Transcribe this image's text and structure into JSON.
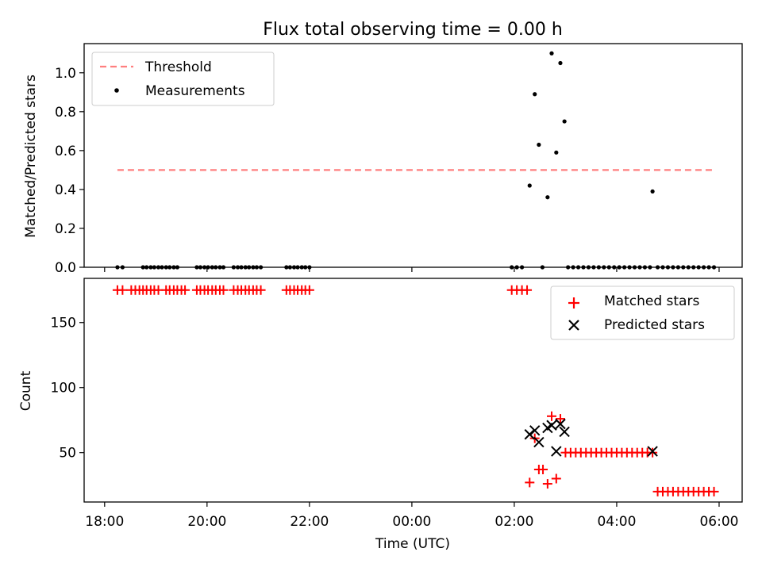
{
  "chart_data": [
    {
      "type": "scatter",
      "title": "Flux total observing time = 0.00 h",
      "ylabel": "Matched/Predicted stars",
      "xlabel": "",
      "x_unit": "hours since 18:00 UTC on the time axis",
      "ylim": [
        0,
        1.15
      ],
      "yticks": [
        "0.0",
        "0.2",
        "0.4",
        "0.6",
        "0.8",
        "1.0"
      ],
      "legend": {
        "placement": "top-left",
        "entries": [
          "Threshold",
          "Measurements"
        ]
      },
      "threshold": {
        "name": "Threshold",
        "value": 0.5,
        "x_range": [
          0.25,
          11.9
        ],
        "color": "#ff7f7f",
        "style": "dashed"
      },
      "series": [
        {
          "name": "Measurements",
          "color": "#000000",
          "points": [
            [
              0.25,
              0
            ],
            [
              0.35,
              0
            ],
            [
              0.75,
              0
            ],
            [
              0.82,
              0
            ],
            [
              0.9,
              0
            ],
            [
              0.97,
              0
            ],
            [
              1.05,
              0
            ],
            [
              1.12,
              0
            ],
            [
              1.2,
              0
            ],
            [
              1.27,
              0
            ],
            [
              1.35,
              0
            ],
            [
              1.42,
              0
            ],
            [
              1.8,
              0
            ],
            [
              1.87,
              0
            ],
            [
              1.95,
              0
            ],
            [
              2.02,
              0
            ],
            [
              2.1,
              0
            ],
            [
              2.17,
              0
            ],
            [
              2.25,
              0
            ],
            [
              2.32,
              0
            ],
            [
              2.52,
              0
            ],
            [
              2.6,
              0
            ],
            [
              2.67,
              0
            ],
            [
              2.75,
              0
            ],
            [
              2.82,
              0
            ],
            [
              2.9,
              0
            ],
            [
              2.97,
              0
            ],
            [
              3.05,
              0
            ],
            [
              3.55,
              0
            ],
            [
              3.62,
              0
            ],
            [
              3.7,
              0
            ],
            [
              3.77,
              0
            ],
            [
              3.85,
              0
            ],
            [
              3.92,
              0
            ],
            [
              4.0,
              0
            ],
            [
              7.95,
              0
            ],
            [
              8.05,
              0
            ],
            [
              8.15,
              0
            ],
            [
              8.55,
              0
            ],
            [
              8.3,
              0.42
            ],
            [
              8.4,
              0.89
            ],
            [
              8.48,
              0.63
            ],
            [
              8.65,
              0.36
            ],
            [
              8.73,
              1.1
            ],
            [
              8.82,
              0.59
            ],
            [
              8.9,
              1.05
            ],
            [
              8.98,
              0.75
            ],
            [
              10.7,
              0.39
            ],
            [
              9.05,
              0
            ],
            [
              9.15,
              0
            ],
            [
              9.25,
              0
            ],
            [
              9.35,
              0
            ],
            [
              9.45,
              0
            ],
            [
              9.55,
              0
            ],
            [
              9.65,
              0
            ],
            [
              9.75,
              0
            ],
            [
              9.85,
              0
            ],
            [
              9.95,
              0
            ],
            [
              10.05,
              0
            ],
            [
              10.15,
              0
            ],
            [
              10.25,
              0
            ],
            [
              10.35,
              0
            ],
            [
              10.45,
              0
            ],
            [
              10.55,
              0
            ],
            [
              10.65,
              0
            ],
            [
              10.8,
              0
            ],
            [
              10.9,
              0
            ],
            [
              11.0,
              0
            ],
            [
              11.1,
              0
            ],
            [
              11.2,
              0
            ],
            [
              11.3,
              0
            ],
            [
              11.4,
              0
            ],
            [
              11.5,
              0
            ],
            [
              11.6,
              0
            ],
            [
              11.7,
              0
            ],
            [
              11.8,
              0
            ],
            [
              11.9,
              0
            ]
          ]
        }
      ]
    },
    {
      "type": "scatter",
      "title": "",
      "ylabel": "Count",
      "xlabel": "Time (UTC)",
      "x_unit": "hours since 18:00 UTC",
      "xlim": [
        -0.4,
        12.45
      ],
      "xticks": [
        {
          "value": 0,
          "label": "18:00"
        },
        {
          "value": 2,
          "label": "20:00"
        },
        {
          "value": 4,
          "label": "22:00"
        },
        {
          "value": 6,
          "label": "00:00"
        },
        {
          "value": 8,
          "label": "02:00"
        },
        {
          "value": 10,
          "label": "04:00"
        },
        {
          "value": 12,
          "label": "06:00"
        }
      ],
      "ylim": [
        12,
        184
      ],
      "yticks": [
        "50",
        "100",
        "150"
      ],
      "legend": {
        "placement": "top-right",
        "entries": [
          "Matched stars",
          "Predicted stars"
        ]
      },
      "series": [
        {
          "name": "Matched stars",
          "marker": "plus",
          "color": "#ff0000",
          "points": [
            [
              0.25,
              175
            ],
            [
              0.35,
              175
            ],
            [
              0.52,
              175
            ],
            [
              0.6,
              175
            ],
            [
              0.68,
              175
            ],
            [
              0.75,
              175
            ],
            [
              0.82,
              175
            ],
            [
              0.9,
              175
            ],
            [
              0.97,
              175
            ],
            [
              1.05,
              175
            ],
            [
              1.2,
              175
            ],
            [
              1.27,
              175
            ],
            [
              1.35,
              175
            ],
            [
              1.42,
              175
            ],
            [
              1.5,
              175
            ],
            [
              1.57,
              175
            ],
            [
              1.8,
              175
            ],
            [
              1.87,
              175
            ],
            [
              1.95,
              175
            ],
            [
              2.02,
              175
            ],
            [
              2.1,
              175
            ],
            [
              2.17,
              175
            ],
            [
              2.25,
              175
            ],
            [
              2.32,
              175
            ],
            [
              2.52,
              175
            ],
            [
              2.6,
              175
            ],
            [
              2.67,
              175
            ],
            [
              2.75,
              175
            ],
            [
              2.82,
              175
            ],
            [
              2.9,
              175
            ],
            [
              2.97,
              175
            ],
            [
              3.05,
              175
            ],
            [
              3.55,
              175
            ],
            [
              3.62,
              175
            ],
            [
              3.7,
              175
            ],
            [
              3.77,
              175
            ],
            [
              3.85,
              175
            ],
            [
              3.92,
              175
            ],
            [
              4.0,
              175
            ],
            [
              7.95,
              175
            ],
            [
              8.05,
              175
            ],
            [
              8.15,
              175
            ],
            [
              8.25,
              175
            ],
            [
              8.3,
              27
            ],
            [
              8.4,
              61
            ],
            [
              8.48,
              37
            ],
            [
              8.56,
              37
            ],
            [
              8.65,
              26
            ],
            [
              8.73,
              78
            ],
            [
              8.82,
              30
            ],
            [
              8.9,
              76
            ],
            [
              9.0,
              50
            ],
            [
              9.1,
              50
            ],
            [
              9.2,
              50
            ],
            [
              9.3,
              50
            ],
            [
              9.4,
              50
            ],
            [
              9.5,
              50
            ],
            [
              9.6,
              50
            ],
            [
              9.7,
              50
            ],
            [
              9.8,
              50
            ],
            [
              9.9,
              50
            ],
            [
              10.0,
              50
            ],
            [
              10.1,
              50
            ],
            [
              10.2,
              50
            ],
            [
              10.3,
              50
            ],
            [
              10.4,
              50
            ],
            [
              10.5,
              50
            ],
            [
              10.6,
              50
            ],
            [
              10.7,
              50
            ],
            [
              10.8,
              20
            ],
            [
              10.9,
              20
            ],
            [
              11.0,
              20
            ],
            [
              11.1,
              20
            ],
            [
              11.2,
              20
            ],
            [
              11.3,
              20
            ],
            [
              11.4,
              20
            ],
            [
              11.5,
              20
            ],
            [
              11.6,
              20
            ],
            [
              11.7,
              20
            ],
            [
              11.8,
              20
            ],
            [
              11.9,
              20
            ]
          ]
        },
        {
          "name": "Predicted stars",
          "marker": "x",
          "color": "#000000",
          "points": [
            [
              8.3,
              64
            ],
            [
              8.4,
              67
            ],
            [
              8.48,
              58
            ],
            [
              8.65,
              69
            ],
            [
              8.73,
              71
            ],
            [
              8.82,
              51
            ],
            [
              8.9,
              72
            ],
            [
              8.98,
              66
            ],
            [
              10.7,
              51
            ]
          ]
        }
      ]
    }
  ]
}
